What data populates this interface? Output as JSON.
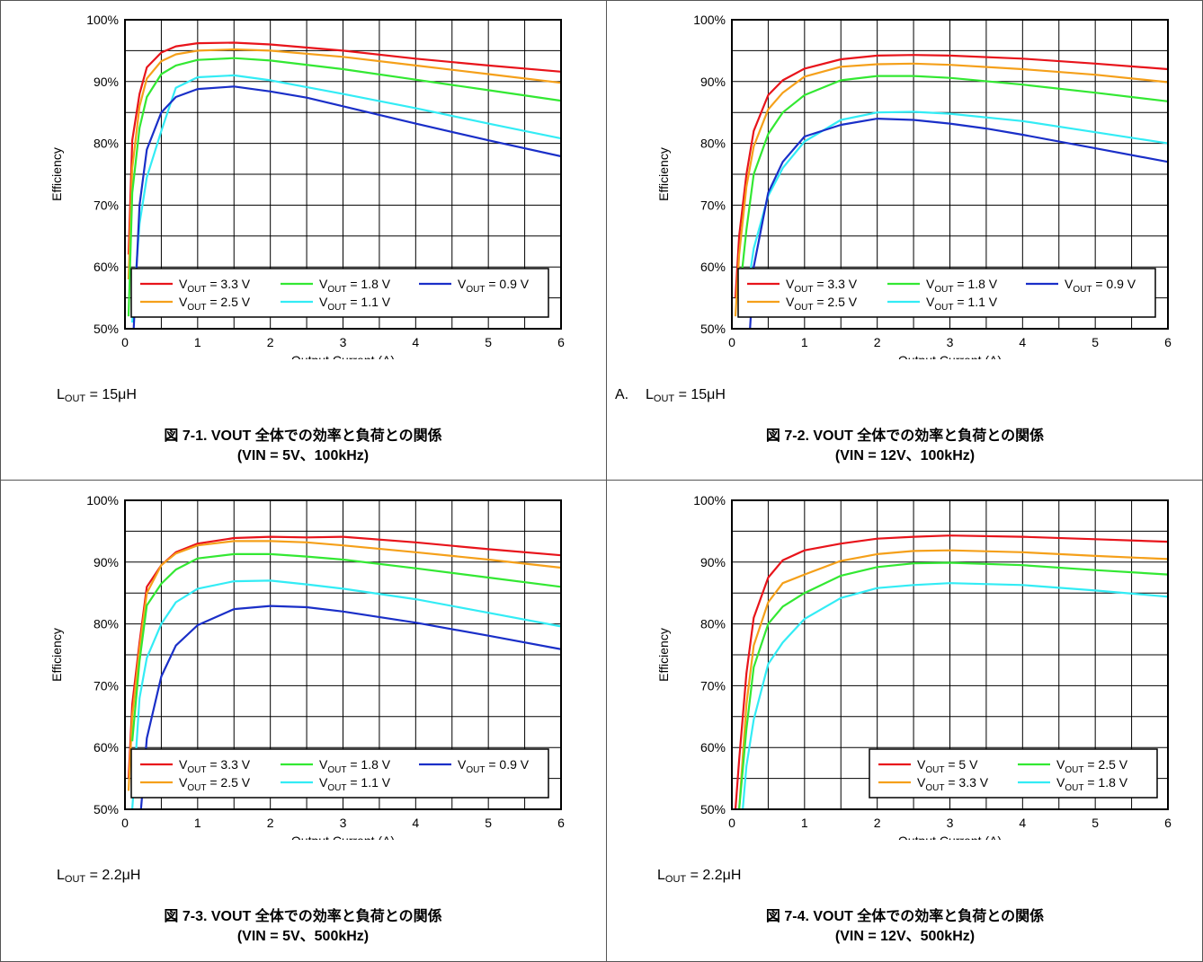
{
  "page": {
    "border_color": "#555555"
  },
  "colors": {
    "red": "#e8141b",
    "orange": "#f5a01a",
    "green": "#33e833",
    "cyan": "#33ecf5",
    "blue": "#1a2fc8"
  },
  "charts": [
    {
      "note_prefix": "",
      "note_l": "L",
      "note_sub": "OUT",
      "note_value": " = 15μH",
      "caption_line1": "図 7-1. VOUT 全体での効率と負荷との関係",
      "caption_line2": "(VIN = 5V、100kHz)",
      "legend_layout": "wide"
    },
    {
      "note_prefix": "A.",
      "note_l": "L",
      "note_sub": "OUT",
      "note_value": " = 15μH",
      "caption_line1": "図 7-2. VOUT 全体での効率と負荷との関係",
      "caption_line2": "(VIN = 12V、100kHz)",
      "legend_layout": "wide"
    },
    {
      "note_prefix": "",
      "note_l": "L",
      "note_sub": "OUT",
      "note_value": " = 2.2μH",
      "caption_line1": "図 7-3. VOUT 全体での効率と負荷との関係",
      "caption_line2": "(VIN = 5V、500kHz)",
      "legend_layout": "wide"
    },
    {
      "note_prefix": "",
      "note_l": "L",
      "note_sub": "OUT",
      "note_value": " = 2.2μH",
      "caption_line1": "図 7-4. VOUT 全体での効率と負荷との関係",
      "caption_line2": "(VIN = 12V、500kHz)",
      "legend_layout": "narrow"
    }
  ],
  "chart_data": [
    {
      "type": "line",
      "xlabel": "Output Current (A)",
      "ylabel": "Efficiency",
      "xlim": [
        0,
        6
      ],
      "ylim": [
        50,
        100
      ],
      "xticks": [
        "0",
        "1",
        "2",
        "3",
        "4",
        "5",
        "6"
      ],
      "yticks": [
        "50%",
        "60%",
        "70%",
        "80%",
        "90%",
        "100%"
      ],
      "grid": true,
      "legend_position": "bottom",
      "series": [
        {
          "name": "3.3 V",
          "color": "red",
          "x": [
            0.05,
            0.1,
            0.2,
            0.3,
            0.5,
            0.7,
            1.0,
            1.5,
            2.0,
            3.0,
            4.0,
            5.0,
            6.0
          ],
          "y": [
            62,
            80.5,
            88,
            92.3,
            94.7,
            95.7,
            96.2,
            96.3,
            96.0,
            95.0,
            93.7,
            92.6,
            91.6
          ]
        },
        {
          "name": "2.5 V",
          "color": "orange",
          "x": [
            0.05,
            0.1,
            0.2,
            0.3,
            0.5,
            0.7,
            1.0,
            1.5,
            2.0,
            3.0,
            4.0,
            5.0,
            6.0
          ],
          "y": [
            58,
            76,
            86,
            90.5,
            93.3,
            94.4,
            95.0,
            95.2,
            95.0,
            94.0,
            92.6,
            91.2,
            89.8
          ]
        },
        {
          "name": "1.8 V",
          "color": "green",
          "x": [
            0.05,
            0.1,
            0.2,
            0.3,
            0.5,
            0.7,
            1.0,
            1.5,
            2.0,
            3.0,
            4.0,
            5.0,
            6.0
          ],
          "y": [
            52,
            72,
            82.5,
            87.5,
            91.2,
            92.6,
            93.5,
            93.8,
            93.4,
            92.0,
            90.3,
            88.6,
            86.9
          ]
        },
        {
          "name": "1.1 V",
          "color": "cyan",
          "x": [
            0.1,
            0.2,
            0.3,
            0.5,
            0.7,
            1.0,
            1.5,
            2.0,
            3.0,
            4.0,
            5.0,
            6.0
          ],
          "y": [
            51,
            67,
            74.5,
            82,
            89,
            90.7,
            91.0,
            90.2,
            88.0,
            85.7,
            83.2,
            80.8
          ]
        },
        {
          "name": "0.9 V",
          "color": "blue",
          "x": [
            0.12,
            0.2,
            0.3,
            0.5,
            0.7,
            1.0,
            1.5,
            2.0,
            2.5,
            3.0,
            4.0,
            5.0,
            6.0
          ],
          "y": [
            50,
            70,
            79,
            85,
            87.5,
            88.8,
            89.2,
            88.4,
            87.4,
            86.0,
            83.2,
            80.5,
            77.9
          ]
        }
      ],
      "legend": [
        {
          "text": "V",
          "sub": "OUT",
          "value": " = 3.3 V",
          "color": "red"
        },
        {
          "text": "V",
          "sub": "OUT",
          "value": " = 1.8 V",
          "color": "green"
        },
        {
          "text": "V",
          "sub": "OUT",
          "value": " = 0.9 V",
          "color": "blue"
        },
        {
          "text": "V",
          "sub": "OUT",
          "value": " = 2.5 V",
          "color": "orange"
        },
        {
          "text": "V",
          "sub": "OUT",
          "value": " = 1.1 V",
          "color": "cyan"
        }
      ]
    },
    {
      "type": "line",
      "xlabel": "Output Current (A)",
      "ylabel": "Efficiency",
      "xlim": [
        0,
        6
      ],
      "ylim": [
        50,
        100
      ],
      "xticks": [
        "0",
        "1",
        "2",
        "3",
        "4",
        "5",
        "6"
      ],
      "yticks": [
        "50%",
        "60%",
        "70%",
        "80%",
        "90%",
        "100%"
      ],
      "grid": true,
      "legend_position": "bottom",
      "series": [
        {
          "name": "3.3 V",
          "color": "red",
          "x": [
            0.05,
            0.1,
            0.2,
            0.3,
            0.5,
            0.7,
            1.0,
            1.5,
            2.0,
            2.5,
            3.0,
            4.0,
            5.0,
            6.0
          ],
          "y": [
            55,
            65,
            75,
            82,
            87.8,
            90.2,
            92.1,
            93.6,
            94.2,
            94.3,
            94.2,
            93.7,
            92.9,
            92.0
          ]
        },
        {
          "name": "2.5 V",
          "color": "orange",
          "x": [
            0.05,
            0.1,
            0.2,
            0.3,
            0.5,
            0.7,
            1.0,
            1.5,
            2.0,
            2.5,
            3.0,
            4.0,
            5.0,
            6.0
          ],
          "y": [
            52,
            62,
            73,
            79.5,
            85.5,
            88.2,
            90.8,
            92.4,
            92.8,
            92.9,
            92.7,
            92.0,
            91.1,
            89.9
          ]
        },
        {
          "name": "1.8 V",
          "color": "green",
          "x": [
            0.1,
            0.2,
            0.3,
            0.5,
            0.7,
            1.0,
            1.5,
            2.0,
            2.5,
            3.0,
            4.0,
            5.0,
            6.0
          ],
          "y": [
            55,
            66,
            75,
            81.5,
            85,
            87.8,
            90.2,
            90.9,
            90.9,
            90.6,
            89.5,
            88.2,
            86.8
          ]
        },
        {
          "name": "1.1 V",
          "color": "cyan",
          "x": [
            0.2,
            0.3,
            0.5,
            0.7,
            1.0,
            1.5,
            2.0,
            2.5,
            3.0,
            4.0,
            5.0,
            6.0
          ],
          "y": [
            55,
            63,
            71.5,
            76,
            80.3,
            83.8,
            85.0,
            85.1,
            84.8,
            83.6,
            81.8,
            80.0
          ]
        },
        {
          "name": "0.9 V",
          "color": "blue",
          "x": [
            0.25,
            0.3,
            0.5,
            0.7,
            1.0,
            1.5,
            2.0,
            2.5,
            3.0,
            3.5,
            4.0,
            5.0,
            6.0
          ],
          "y": [
            50,
            60,
            72,
            77,
            81.1,
            83.0,
            84.0,
            83.8,
            83.2,
            82.4,
            81.4,
            79.2,
            77.0
          ]
        }
      ],
      "legend": [
        {
          "text": "V",
          "sub": "OUT",
          "value": " = 3.3 V",
          "color": "red"
        },
        {
          "text": "V",
          "sub": "OUT",
          "value": " = 1.8 V",
          "color": "green"
        },
        {
          "text": "V",
          "sub": "OUT",
          "value": " = 0.9 V",
          "color": "blue"
        },
        {
          "text": "V",
          "sub": "OUT",
          "value": " = 2.5 V",
          "color": "orange"
        },
        {
          "text": "V",
          "sub": "OUT",
          "value": " = 1.1 V",
          "color": "cyan"
        }
      ]
    },
    {
      "type": "line",
      "xlabel": "Output Current (A)",
      "ylabel": "Efficiency",
      "xlim": [
        0,
        6
      ],
      "ylim": [
        50,
        100
      ],
      "xticks": [
        "0",
        "1",
        "2",
        "3",
        "4",
        "5",
        "6"
      ],
      "yticks": [
        "50%",
        "60%",
        "70%",
        "80%",
        "90%",
        "100%"
      ],
      "grid": true,
      "legend_position": "bottom",
      "series": [
        {
          "name": "3.3 V",
          "color": "red",
          "x": [
            0.05,
            0.1,
            0.2,
            0.3,
            0.5,
            0.7,
            1.0,
            1.5,
            2.0,
            2.5,
            3.0,
            4.0,
            5.0,
            6.0
          ],
          "y": [
            55,
            67,
            77,
            86,
            89.5,
            91.6,
            93.0,
            93.9,
            94.1,
            94.0,
            94.1,
            93.2,
            92.1,
            91.1
          ]
        },
        {
          "name": "2.5 V",
          "color": "orange",
          "x": [
            0.05,
            0.1,
            0.2,
            0.3,
            0.5,
            0.7,
            1.0,
            1.5,
            2.0,
            2.5,
            3.0,
            4.0,
            5.0,
            6.0
          ],
          "y": [
            53,
            65,
            76,
            85,
            89.5,
            91.4,
            92.7,
            93.4,
            93.4,
            93.2,
            92.7,
            91.6,
            90.4,
            89.1
          ]
        },
        {
          "name": "1.8 V",
          "color": "green",
          "x": [
            0.1,
            0.2,
            0.3,
            0.5,
            0.7,
            1.0,
            1.5,
            2.0,
            2.5,
            3.0,
            4.0,
            5.0,
            6.0
          ],
          "y": [
            61,
            74,
            83,
            86.5,
            88.8,
            90.6,
            91.3,
            91.3,
            90.9,
            90.4,
            89.0,
            87.5,
            86.0
          ]
        },
        {
          "name": "1.1 V",
          "color": "cyan",
          "x": [
            0.1,
            0.2,
            0.3,
            0.5,
            0.7,
            1.0,
            1.5,
            2.0,
            2.5,
            3.0,
            4.0,
            5.0,
            6.0
          ],
          "y": [
            50,
            68,
            74.5,
            80,
            83.5,
            85.7,
            86.9,
            87.0,
            86.4,
            85.7,
            84.0,
            81.8,
            79.6
          ]
        },
        {
          "name": "0.9 V",
          "color": "blue",
          "x": [
            0.22,
            0.3,
            0.5,
            0.7,
            1.0,
            1.5,
            2.0,
            2.5,
            3.0,
            4.0,
            5.0,
            6.0
          ],
          "y": [
            50,
            61.5,
            71.5,
            76.5,
            79.8,
            82.4,
            82.9,
            82.7,
            82.0,
            80.2,
            78.1,
            75.9
          ]
        }
      ],
      "legend": [
        {
          "text": "V",
          "sub": "OUT",
          "value": " = 3.3 V",
          "color": "red"
        },
        {
          "text": "V",
          "sub": "OUT",
          "value": " = 1.8 V",
          "color": "green"
        },
        {
          "text": "V",
          "sub": "OUT",
          "value": " = 0.9 V",
          "color": "blue"
        },
        {
          "text": "V",
          "sub": "OUT",
          "value": " = 2.5 V",
          "color": "orange"
        },
        {
          "text": "V",
          "sub": "OUT",
          "value": " = 1.1 V",
          "color": "cyan"
        }
      ]
    },
    {
      "type": "line",
      "xlabel": "Output Current (A)",
      "ylabel": "Efficiency",
      "xlim": [
        0,
        6
      ],
      "ylim": [
        50,
        100
      ],
      "xticks": [
        "0",
        "1",
        "2",
        "3",
        "4",
        "5",
        "6"
      ],
      "yticks": [
        "50%",
        "60%",
        "70%",
        "80%",
        "90%",
        "100%"
      ],
      "grid": true,
      "legend_position": "bottom-right",
      "series": [
        {
          "name": "5 V",
          "color": "red",
          "x": [
            0.05,
            0.1,
            0.2,
            0.3,
            0.5,
            0.7,
            1.0,
            1.5,
            2.0,
            2.5,
            3.0,
            4.0,
            5.0,
            6.0
          ],
          "y": [
            50,
            58,
            72,
            81,
            87.5,
            90.3,
            91.9,
            93.0,
            93.8,
            94.1,
            94.3,
            94.1,
            93.7,
            93.3
          ]
        },
        {
          "name": "3.3 V",
          "color": "orange",
          "x": [
            0.1,
            0.2,
            0.3,
            0.5,
            0.7,
            1.0,
            1.5,
            2.0,
            2.5,
            3.0,
            4.0,
            5.0,
            6.0
          ],
          "y": [
            50,
            67,
            76.5,
            83.5,
            86.6,
            88.0,
            90.2,
            91.3,
            91.8,
            91.9,
            91.6,
            91.0,
            90.5
          ]
        },
        {
          "name": "2.5 V",
          "color": "green",
          "x": [
            0.1,
            0.2,
            0.3,
            0.5,
            0.7,
            1.0,
            1.5,
            2.0,
            2.5,
            3.0,
            4.0,
            5.0,
            6.0
          ],
          "y": [
            50,
            63,
            73,
            80,
            82.8,
            85.0,
            87.8,
            89.2,
            89.8,
            89.9,
            89.5,
            88.7,
            88.0
          ]
        },
        {
          "name": "1.8 V",
          "color": "cyan",
          "x": [
            0.15,
            0.2,
            0.3,
            0.5,
            0.7,
            1.0,
            1.5,
            2.0,
            2.5,
            3.0,
            4.0,
            5.0,
            6.0
          ],
          "y": [
            50,
            57,
            64.5,
            73.5,
            77,
            80.8,
            84.2,
            85.8,
            86.3,
            86.6,
            86.3,
            85.4,
            84.4
          ]
        }
      ],
      "legend": [
        {
          "text": "V",
          "sub": "OUT",
          "value": " = 5 V",
          "color": "red"
        },
        {
          "text": "V",
          "sub": "OUT",
          "value": " = 2.5 V",
          "color": "green"
        },
        {
          "text": "V",
          "sub": "OUT",
          "value": " = 3.3 V",
          "color": "orange"
        },
        {
          "text": "V",
          "sub": "OUT",
          "value": " = 1.8 V",
          "color": "cyan"
        }
      ]
    }
  ]
}
